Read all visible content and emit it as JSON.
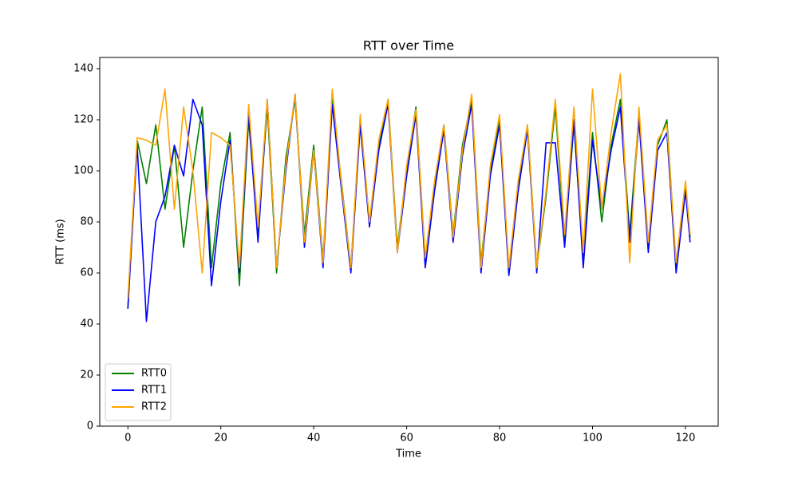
{
  "chart_data": {
    "type": "line",
    "title": "RTT over Time",
    "x_label": "Time",
    "y_label": "RTT (ms)",
    "x": [
      0,
      2,
      4,
      6,
      8,
      10,
      12,
      14,
      16,
      18,
      20,
      22,
      24,
      26,
      28,
      30,
      32,
      34,
      36,
      38,
      40,
      42,
      44,
      46,
      48,
      50,
      52,
      54,
      56,
      58,
      60,
      62,
      64,
      66,
      68,
      70,
      72,
      74,
      76,
      78,
      80,
      82,
      84,
      86,
      88,
      90,
      92,
      94,
      96,
      98,
      100,
      102,
      104,
      106,
      108,
      110,
      112,
      114,
      116,
      118,
      120,
      121
    ],
    "series": [
      {
        "name": "RTT0",
        "color": "#008000",
        "values": [
          46,
          112,
          95,
          118,
          85,
          110,
          70,
          100,
          125,
          62,
          95,
          115,
          55,
          120,
          75,
          125,
          60,
          105,
          128,
          75,
          110,
          65,
          128,
          95,
          62,
          120,
          80,
          110,
          128,
          70,
          100,
          125,
          65,
          95,
          118,
          75,
          110,
          128,
          64,
          100,
          120,
          60,
          95,
          118,
          62,
          90,
          125,
          72,
          118,
          65,
          115,
          80,
          110,
          128,
          75,
          122,
          70,
          110,
          120,
          62,
          95,
          74
        ]
      },
      {
        "name": "RTT1",
        "color": "#0000ff",
        "values": [
          46,
          110,
          41,
          80,
          90,
          110,
          98,
          128,
          118,
          55,
          88,
          112,
          60,
          122,
          72,
          128,
          62,
          100,
          130,
          70,
          108,
          62,
          126,
          92,
          60,
          118,
          78,
          108,
          126,
          68,
          98,
          122,
          62,
          92,
          116,
          72,
          106,
          126,
          60,
          98,
          118,
          59,
          92,
          116,
          60,
          111,
          111,
          70,
          120,
          62,
          112,
          85,
          108,
          125,
          72,
          120,
          68,
          108,
          115,
          60,
          92,
          72
        ]
      },
      {
        "name": "RTT2",
        "color": "#ffa500",
        "values": [
          50,
          113,
          112,
          110,
          132,
          85,
          125,
          100,
          60,
          115,
          113,
          110,
          62,
          126,
          78,
          128,
          62,
          102,
          130,
          72,
          108,
          64,
          132,
          94,
          62,
          122,
          80,
          112,
          128,
          68,
          102,
          124,
          66,
          96,
          118,
          74,
          108,
          130,
          62,
          102,
          122,
          62,
          96,
          118,
          62,
          92,
          128,
          75,
          125,
          68,
          132,
          85,
          115,
          138,
          64,
          125,
          72,
          112,
          118,
          64,
          96,
          75
        ]
      }
    ],
    "xlim": [
      -6.05,
      127.05
    ],
    "ylim": [
      0,
      144.4
    ],
    "xticks": [
      0,
      20,
      40,
      60,
      80,
      100,
      120
    ],
    "yticks": [
      0,
      20,
      40,
      60,
      80,
      100,
      120,
      140
    ],
    "legend": "lower left"
  }
}
